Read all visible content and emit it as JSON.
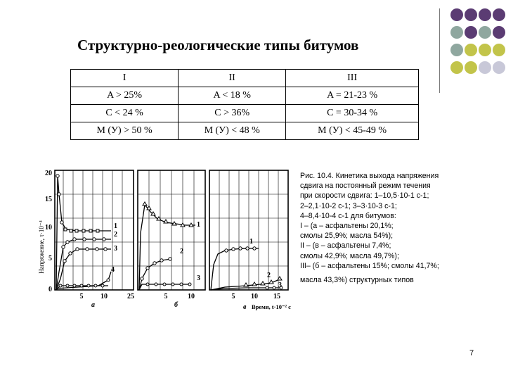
{
  "slide": {
    "title": "Структурно-реологические типы битумов",
    "page_number": "7",
    "decor_colors": [
      "#5b3c73",
      "#8fa79f",
      "#c2c44a",
      "#c8c8d8"
    ]
  },
  "table": {
    "rows": [
      [
        "I",
        "II",
        "III"
      ],
      [
        "A > 25%",
        "A < 18 %",
        "A = 21-23 %"
      ],
      [
        "C < 24 %",
        "C > 36%",
        "C = 30-34 %"
      ],
      [
        "M (У) > 50 %",
        "M (У) < 48 %",
        "M (У) < 45-49 %"
      ]
    ]
  },
  "caption": {
    "lines": [
      "Рис. 10.4. Кинетика выхода напряжения",
      "сдвига на постоянный режим течения",
      "при скорости сдвига: 1–10,5·10-1 с-1;",
      "2–2,1·10-2 с-1; 3–3·10-3 с-1;",
      "4–8,4·10-4 с-1 для битумов:",
      "I – (а – асфальтены 20,1%;",
      "смолы 25,9%; масла 54%);",
      "II – (в – асфальтены 7,4%;",
      "смолы 42,9%; масла 49,7%);",
      "III– (б – асфальтены 15%; смолы 41,7%;",
      "масла 43,3%) структурных типов"
    ]
  },
  "figure": {
    "ylabel": "Напряжение, τ·10⁻⁴",
    "xlabel": "Время, t·10⁻² с",
    "y_ticks": [
      "20",
      "15",
      "10",
      "5",
      "0"
    ],
    "panels": [
      {
        "letter": "а",
        "x_ticks": [
          "5",
          "10",
          "25"
        ],
        "curve_labels": [
          "1",
          "2",
          "3",
          "4"
        ]
      },
      {
        "letter": "б",
        "x_ticks": [
          "5",
          "10"
        ],
        "curve_labels": [
          "1",
          "2",
          "3"
        ]
      },
      {
        "letter": "в",
        "x_ticks": [
          "5",
          "10",
          "15"
        ],
        "curve_labels": [
          "1",
          "2",
          "3"
        ]
      }
    ]
  }
}
